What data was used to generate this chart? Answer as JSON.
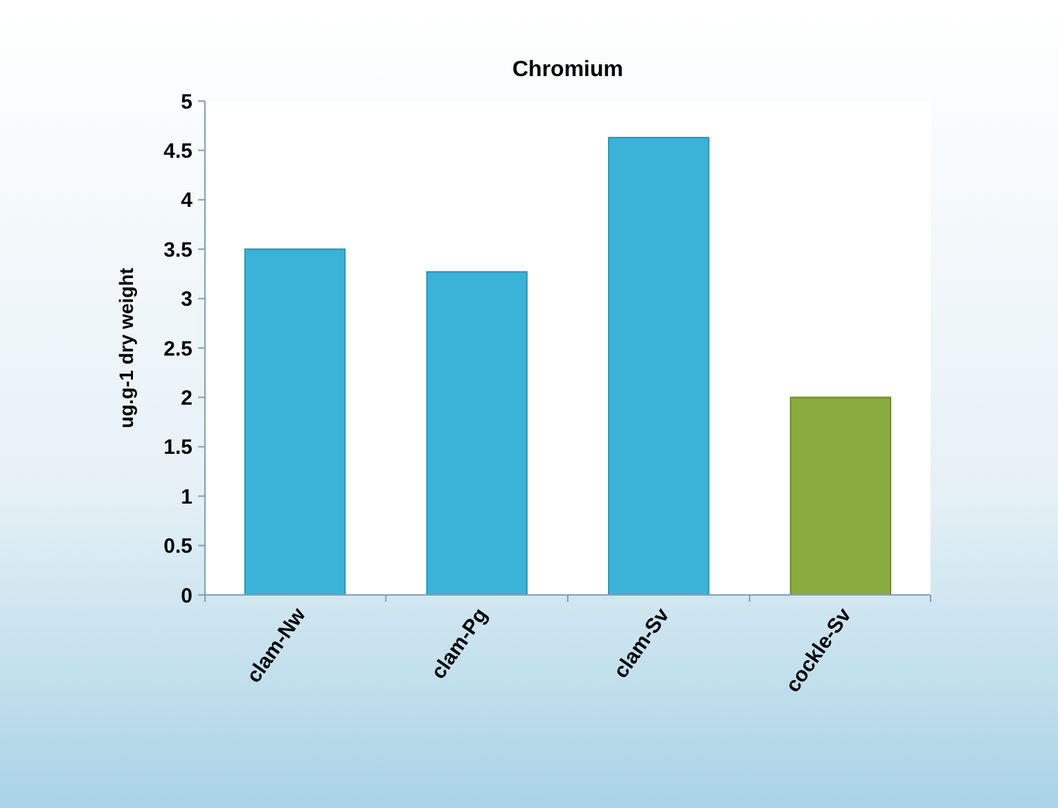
{
  "chart_data": {
    "type": "bar",
    "title": "Chromium",
    "ylabel": "ug.g-1 dry weight",
    "categories": [
      "clam-Nw",
      "clam-Pg",
      "clam-Sv",
      "cockle-Sv"
    ],
    "values": [
      3.5,
      3.27,
      4.63,
      2.0
    ],
    "colors": [
      "#3bb3d9",
      "#3bb3d9",
      "#3bb3d9",
      "#8aab3f"
    ],
    "ylim": [
      0,
      5
    ],
    "yticks": [
      0,
      0.5,
      1,
      1.5,
      2,
      2.5,
      3,
      3.5,
      4,
      4.5,
      5
    ],
    "grid": false
  }
}
